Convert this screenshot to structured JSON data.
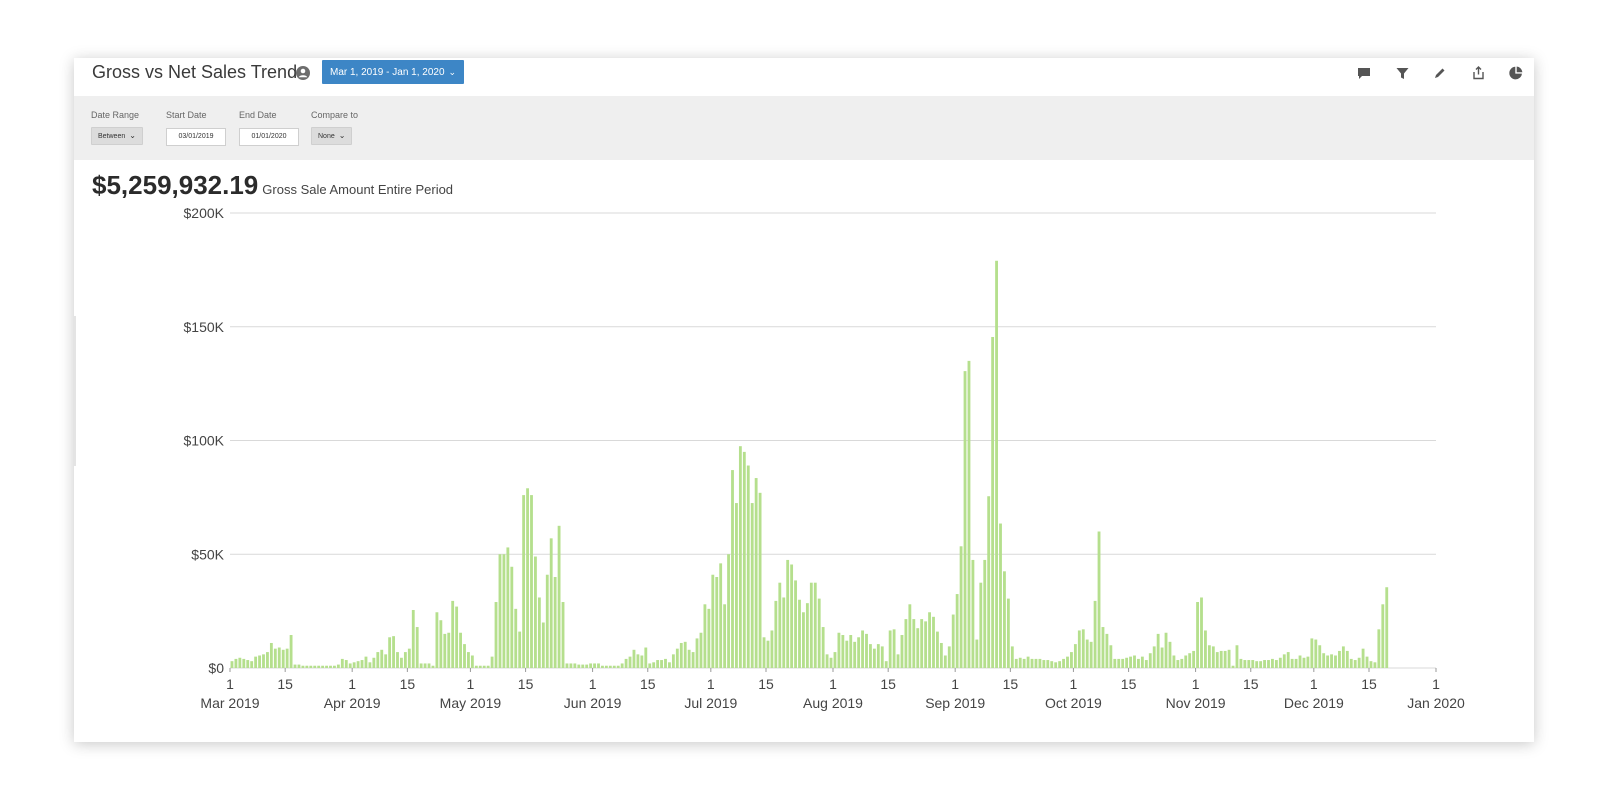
{
  "header": {
    "title": "Gross vs Net Sales Trend",
    "date_button": "Mar 1, 2019 - Jan 1, 2020",
    "toolbar_icons": [
      "comment-icon",
      "filter-icon",
      "edit-icon",
      "share-icon",
      "pie-chart-icon"
    ]
  },
  "filters": {
    "date_range": {
      "label": "Date Range",
      "value": "Between"
    },
    "start_date": {
      "label": "Start Date",
      "value": "03/01/2019"
    },
    "end_date": {
      "label": "End Date",
      "value": "01/01/2020"
    },
    "compare_to": {
      "label": "Compare to",
      "value": "None"
    }
  },
  "summary": {
    "amount": "$5,259,932.19",
    "label": "Gross Sale Amount Entire Period"
  },
  "colors": {
    "accent": "#3d86c6",
    "bar": "#b5df8d",
    "grid": "#d9d9d9",
    "filter_bg": "#efefef"
  },
  "chart_data": {
    "type": "bar",
    "x_start": "2019-03-01",
    "x_end": "2020-01-01",
    "ylim": [
      0,
      200000
    ],
    "y_ticks": [
      {
        "value": 0,
        "label": "$0"
      },
      {
        "value": 50000,
        "label": "$50K"
      },
      {
        "value": 100000,
        "label": "$100K"
      },
      {
        "value": 150000,
        "label": "$150K"
      },
      {
        "value": 200000,
        "label": "$200K"
      }
    ],
    "x_ticks": [
      {
        "date": "2019-03-01",
        "day": "1",
        "month": "Mar 2019"
      },
      {
        "date": "2019-03-15",
        "day": "15"
      },
      {
        "date": "2019-04-01",
        "day": "1",
        "month": "Apr 2019"
      },
      {
        "date": "2019-04-15",
        "day": "15"
      },
      {
        "date": "2019-05-01",
        "day": "1",
        "month": "May 2019"
      },
      {
        "date": "2019-05-15",
        "day": "15"
      },
      {
        "date": "2019-06-01",
        "day": "1",
        "month": "Jun 2019"
      },
      {
        "date": "2019-06-15",
        "day": "15"
      },
      {
        "date": "2019-07-01",
        "day": "1",
        "month": "Jul 2019"
      },
      {
        "date": "2019-07-15",
        "day": "15"
      },
      {
        "date": "2019-08-01",
        "day": "1",
        "month": "Aug 2019"
      },
      {
        "date": "2019-08-15",
        "day": "15"
      },
      {
        "date": "2019-09-01",
        "day": "1",
        "month": "Sep 2019"
      },
      {
        "date": "2019-09-15",
        "day": "15"
      },
      {
        "date": "2019-10-01",
        "day": "1",
        "month": "Oct 2019"
      },
      {
        "date": "2019-10-15",
        "day": "15"
      },
      {
        "date": "2019-11-01",
        "day": "1",
        "month": "Nov 2019"
      },
      {
        "date": "2019-11-15",
        "day": "15"
      },
      {
        "date": "2019-12-01",
        "day": "1",
        "month": "Dec 2019"
      },
      {
        "date": "2019-12-15",
        "day": "15"
      },
      {
        "date": "2020-01-01",
        "day": "1",
        "month": "Jan 2020"
      }
    ],
    "series": [
      {
        "values": [
          3000,
          4000,
          4500,
          4000,
          3500,
          3000,
          5000,
          5500,
          6000,
          7000,
          11000,
          8500,
          9000,
          8000,
          8500,
          14500,
          1500,
          1500,
          1000,
          1000,
          1000,
          1000,
          1000,
          1000,
          1000,
          1000,
          1000,
          1500,
          4000,
          3500,
          2000,
          2500,
          3000,
          3500,
          5000,
          2500,
          4500,
          7000,
          8000,
          6000,
          13500,
          14000,
          7000,
          4500,
          7000,
          8500,
          25500,
          18000,
          2000,
          2000,
          2000,
          1000,
          24500,
          21000,
          15000,
          15500,
          29500,
          27000,
          15500,
          10500,
          7000,
          5500,
          1000,
          1000,
          1000,
          1000,
          5000,
          29000,
          50000,
          50000,
          53000,
          44500,
          26000,
          16000,
          76000,
          79000,
          76000,
          49000,
          31000,
          20000,
          41000,
          57000,
          40000,
          62500,
          29000,
          2000,
          2000,
          2000,
          1500,
          1500,
          1500,
          2000,
          2000,
          2000,
          1000,
          1000,
          1000,
          1000,
          1000,
          2000,
          4000,
          5000,
          8000,
          6000,
          5500,
          9000,
          2000,
          2500,
          3500,
          3500,
          4000,
          2500,
          6000,
          8500,
          11000,
          11500,
          8000,
          7000,
          13000,
          15500,
          28000,
          26000,
          41000,
          40000,
          46000,
          28000,
          50000,
          87000,
          72500,
          97500,
          95000,
          89000,
          72500,
          83500,
          77000,
          13500,
          12000,
          16500,
          29500,
          37500,
          31000,
          47500,
          45500,
          38500,
          30000,
          24500,
          28500,
          37500,
          37500,
          30500,
          18000,
          6000,
          4500,
          7000,
          15500,
          14500,
          12000,
          14500,
          11500,
          13500,
          16500,
          15000,
          10500,
          8500,
          10500,
          9500,
          3000,
          16500,
          17000,
          6000,
          14500,
          21500,
          28000,
          21500,
          17500,
          21500,
          20500,
          24500,
          22500,
          16000,
          11000,
          5500,
          9500,
          23500,
          32500,
          53500,
          130500,
          135000,
          47500,
          12500,
          37500,
          47500,
          75500,
          145500,
          179000,
          63500,
          42500,
          30500,
          9500,
          4000,
          4500,
          4000,
          5000,
          4000,
          4000,
          4000,
          3500,
          3500,
          3000,
          2500,
          3000,
          4000,
          5000,
          7000,
          10500,
          16500,
          17000,
          12500,
          11500,
          29500,
          60000,
          18000,
          15000,
          10000,
          4000,
          4000,
          4000,
          4500,
          5000,
          5500,
          4000,
          5000,
          3500,
          6500,
          9500,
          15000,
          9000,
          15500,
          11500,
          5500,
          3500,
          4000,
          5500,
          6500,
          7500,
          29000,
          31000,
          16500,
          10000,
          9500,
          7000,
          7500,
          7500,
          8000,
          1000,
          10000,
          4000,
          3500,
          3500,
          3500,
          3000,
          3000,
          3500,
          3500,
          4000,
          3500,
          4500,
          6000,
          7000,
          4000,
          4000,
          5500,
          4500,
          5000,
          13000,
          12500,
          10000,
          6500,
          5500,
          6000,
          5500,
          7500,
          9500,
          7500,
          4000,
          3500,
          4500,
          8500,
          5000,
          3000,
          2500,
          17000,
          28000,
          35500
        ]
      }
    ]
  }
}
